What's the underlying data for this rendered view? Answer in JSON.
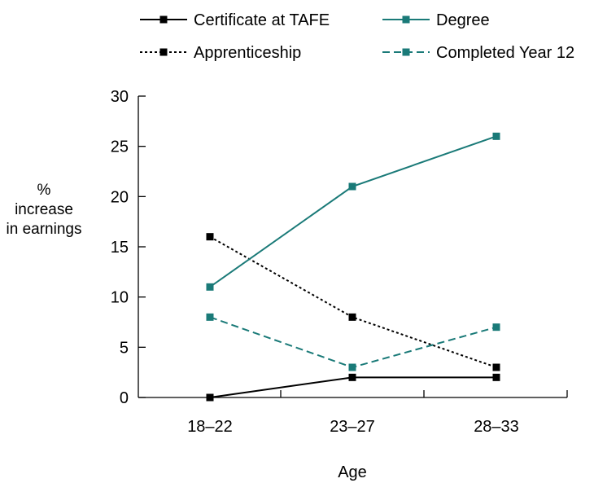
{
  "chart_data": {
    "type": "line",
    "categories": [
      "18–22",
      "23–27",
      "28–33"
    ],
    "series": [
      {
        "name": "Certificate at TAFE",
        "values": [
          0,
          2,
          2
        ],
        "color": "#000000",
        "dash": "solid"
      },
      {
        "name": "Apprenticeship",
        "values": [
          16,
          8,
          3
        ],
        "color": "#000000",
        "dash": "dotted"
      },
      {
        "name": "Degree",
        "values": [
          11,
          21,
          26
        ],
        "color": "#1a7a78",
        "dash": "solid"
      },
      {
        "name": "Completed Year 12",
        "values": [
          8,
          3,
          7
        ],
        "color": "#1a7a78",
        "dash": "dashed"
      }
    ],
    "title": "",
    "xlabel": "Age",
    "ylabel_lines": [
      "%",
      "increase",
      "in earnings"
    ],
    "ylim": [
      0,
      30
    ],
    "yticks": [
      0,
      5,
      10,
      15,
      20,
      25,
      30
    ],
    "grid": false,
    "legend_position": "top"
  }
}
